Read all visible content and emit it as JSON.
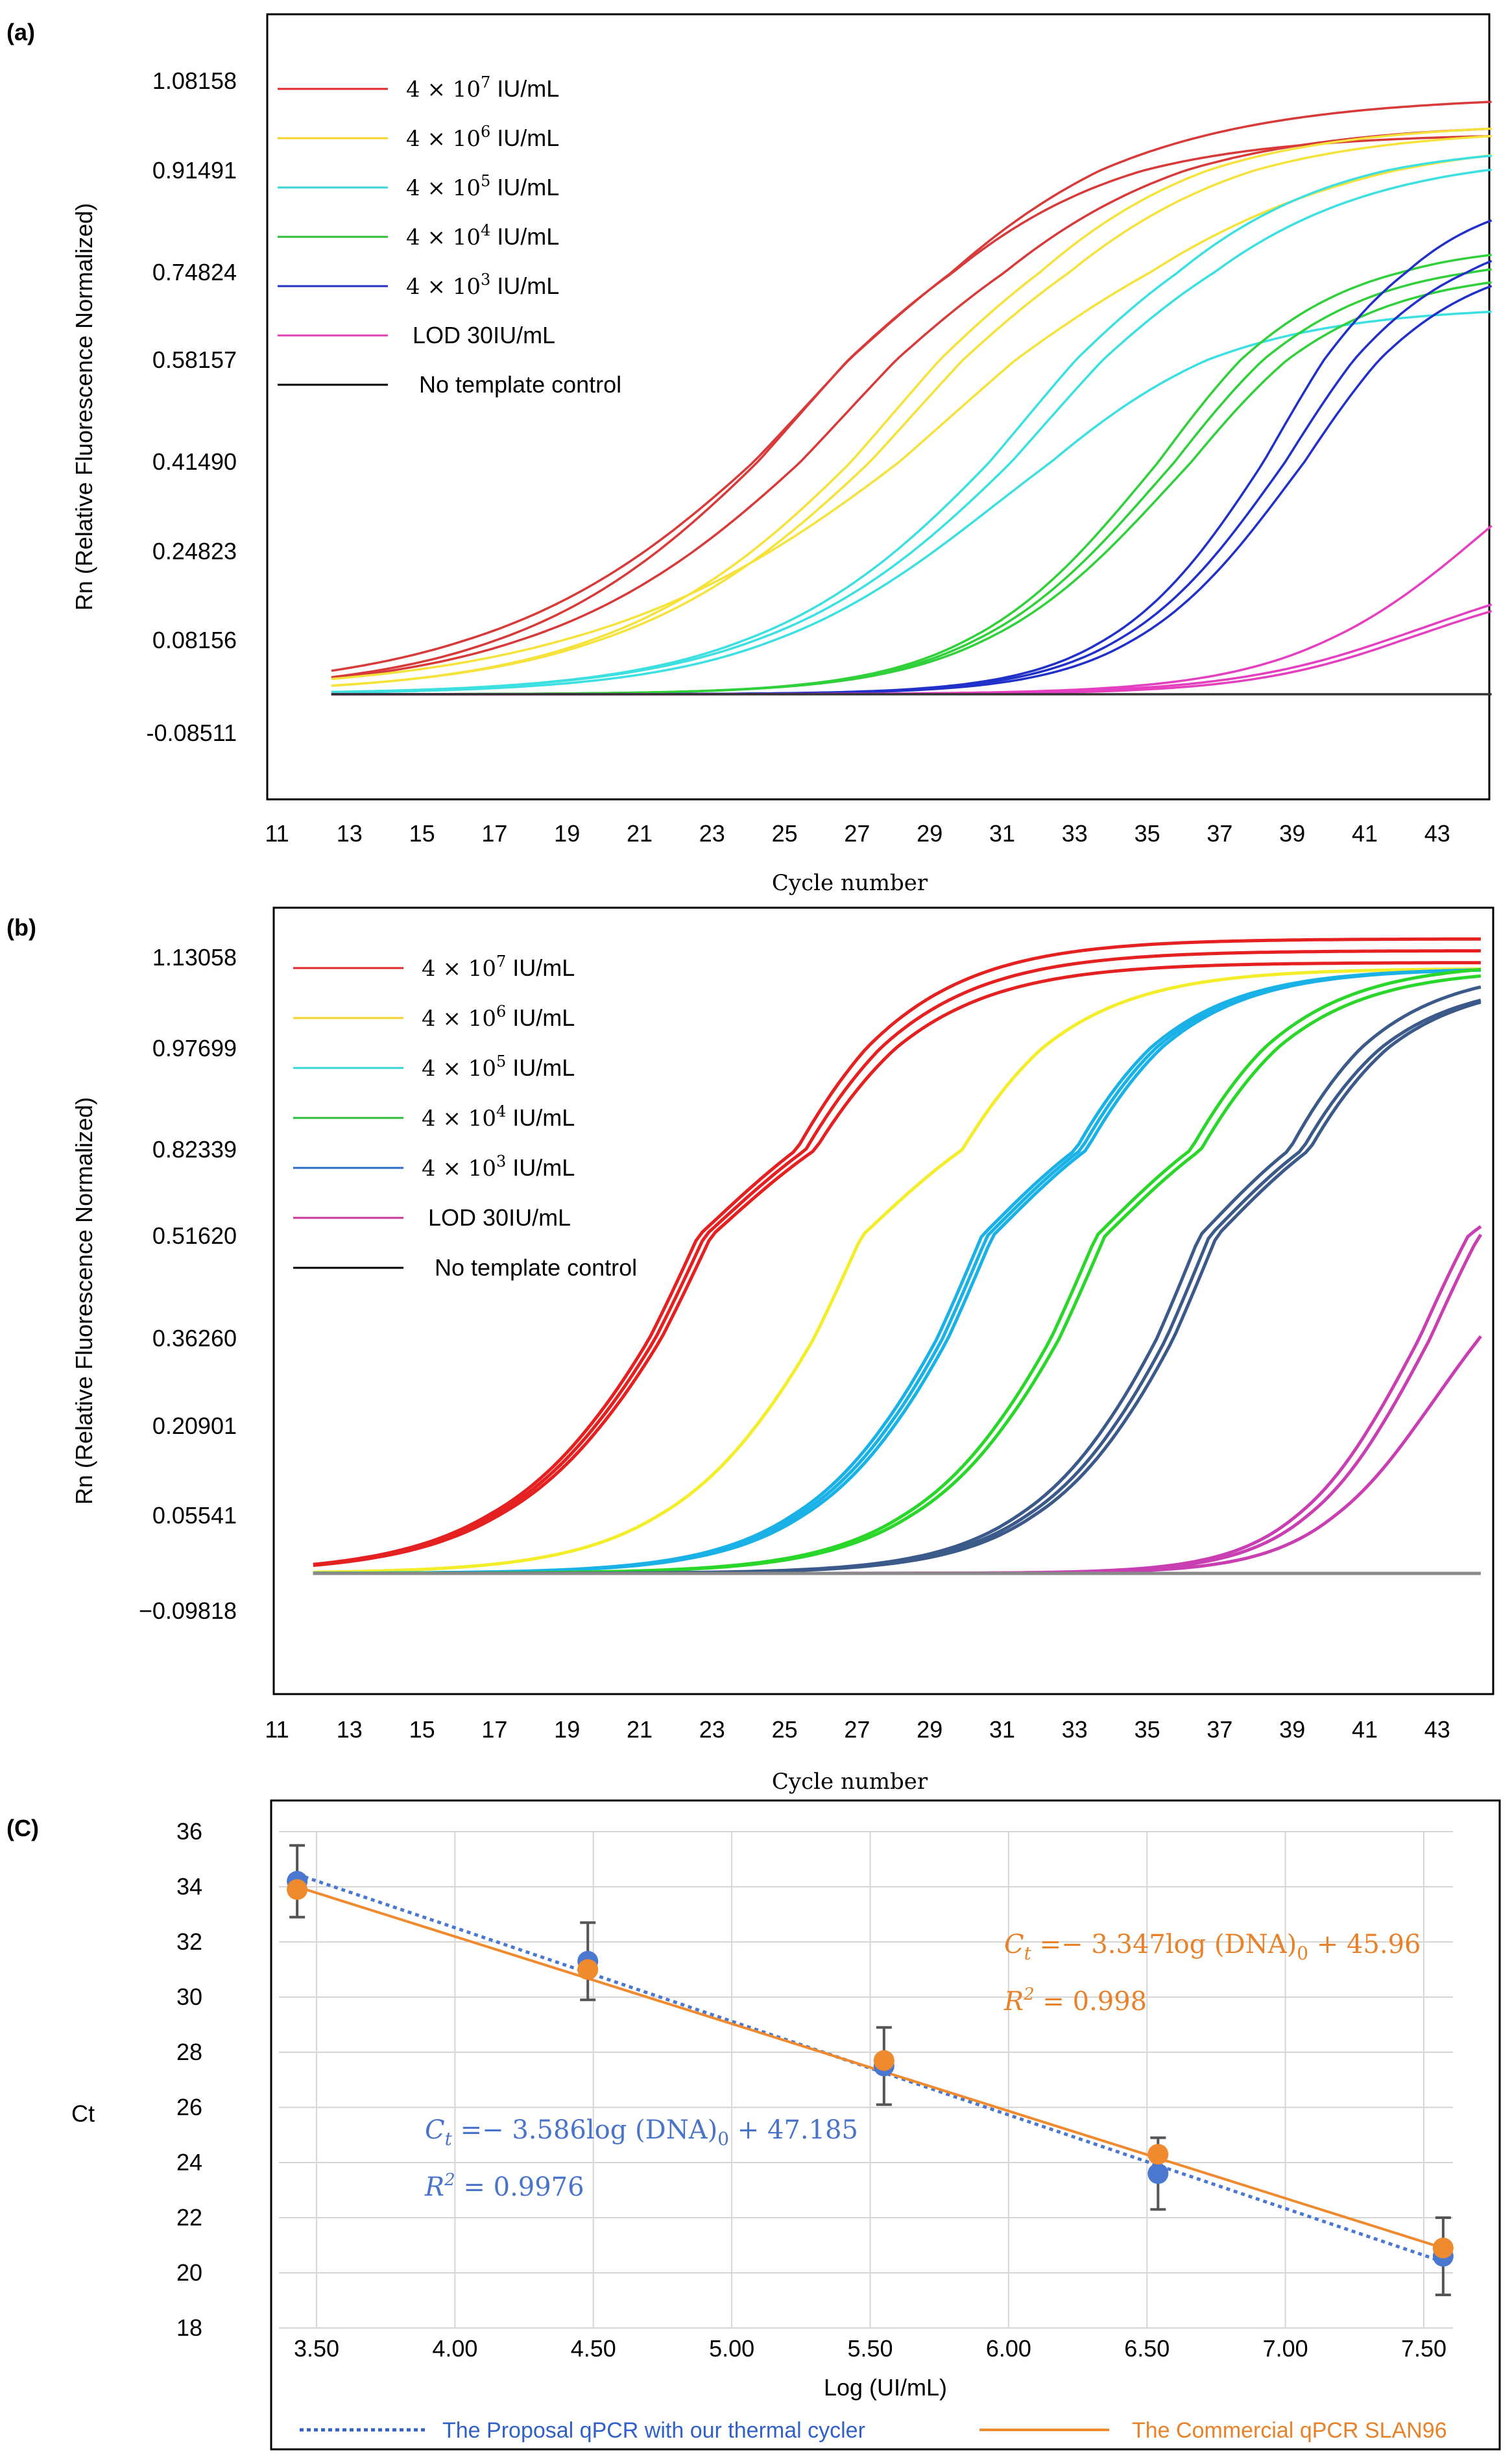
{
  "chart_data": [
    {
      "id": "a",
      "type": "line",
      "panel_label": "(a)",
      "xlabel": "Cycle  number",
      "ylabel": "Rn (Relative Fluorescence Normalized)",
      "x_ticks": [
        "11",
        "13",
        "15",
        "17",
        "19",
        "21",
        "23",
        "25",
        "27",
        "29",
        "31",
        "33",
        "35",
        "37",
        "39",
        "41",
        "43"
      ],
      "y_ticks": [
        "1.08158",
        "0.91491",
        "0.74824",
        "0.58157",
        "0.41490",
        "0.24823",
        "0.08156",
        "-0.08511"
      ],
      "y_tick_values": [
        1.08158,
        0.91491,
        0.74824,
        0.58157,
        0.4149,
        0.24823,
        0.08156,
        -0.08511
      ],
      "xlim": [
        11,
        44.5
      ],
      "ylim": [
        -0.16,
        1.2
      ],
      "legend": [
        {
          "base": "4 × 10",
          "exp": "7",
          "unit": " IU/mL",
          "color": "#e02828"
        },
        {
          "base": "4 × 10",
          "exp": "6",
          "unit": "  IU/mL",
          "color": "#f3d22a"
        },
        {
          "base": "4 × 10",
          "exp": "5",
          "unit": "  IU/mL",
          "color": "#35d6d6"
        },
        {
          "base": "4 × 10",
          "exp": "4",
          "unit": "  IU/mL",
          "color": "#2dbb3a"
        },
        {
          "base": "4 × 10",
          "exp": "3",
          "unit": "   IU/mL",
          "color": "#2030c8"
        },
        {
          "base": "LOD  30IU/mL",
          "exp": "",
          "unit": "",
          "color": "#e040b0"
        },
        {
          "base": "No template control",
          "exp": "",
          "unit": "",
          "color": "#000000"
        }
      ],
      "series": [
        {
          "name": "4e7",
          "color": "#d83a3a",
          "curves": [
            {
              "mid": 25.3,
              "top": 1.0,
              "k": 0.27
            },
            {
              "mid": 25.8,
              "top": 1.07,
              "k": 0.24
            },
            {
              "mid": 26.7,
              "top": 1.02,
              "k": 0.25
            }
          ]
        },
        {
          "name": "4e6",
          "color": "#f5e23a",
          "curves": [
            {
              "mid": 28.0,
              "top": 1.02,
              "k": 0.27
            },
            {
              "mid": 28.5,
              "top": 1.01,
              "k": 0.26
            },
            {
              "mid": 29.5,
              "top": 1.0,
              "k": 0.21
            }
          ]
        },
        {
          "name": "4e5",
          "color": "#3ce0e0",
          "curves": [
            {
              "mid": 31.5,
              "top": 0.98,
              "k": 0.29
            },
            {
              "mid": 32.0,
              "top": 0.96,
              "k": 0.28
            },
            {
              "mid": 30.8,
              "top": 0.7,
              "k": 0.3
            }
          ]
        },
        {
          "name": "4e4",
          "color": "#30d03a",
          "curves": [
            {
              "mid": 35.0,
              "top": 0.81,
              "k": 0.4
            },
            {
              "mid": 35.3,
              "top": 0.79,
              "k": 0.39
            },
            {
              "mid": 35.6,
              "top": 0.77,
              "k": 0.38
            }
          ]
        },
        {
          "name": "4e3",
          "color": "#2030c8",
          "curves": [
            {
              "mid": 38.4,
              "top": 0.9,
              "k": 0.46
            },
            {
              "mid": 38.7,
              "top": 0.84,
              "k": 0.45
            },
            {
              "mid": 39.0,
              "top": 0.8,
              "k": 0.45
            }
          ]
        },
        {
          "name": "LOD",
          "color": "#e53fc0",
          "curves": [
            {
              "mid": 44.3,
              "top": 0.6,
              "k": 0.38
            },
            {
              "mid": 42.8,
              "top": 0.25,
              "k": 0.38
            },
            {
              "mid": 42.6,
              "top": 0.22,
              "k": 0.42
            }
          ]
        },
        {
          "name": "NTC",
          "color": "#333333",
          "curves": [
            {
              "mid": 80,
              "top": 0.0,
              "k": 0.3
            }
          ]
        }
      ]
    },
    {
      "id": "b",
      "type": "line",
      "panel_label": "(b)",
      "xlabel": "Cycle  number",
      "ylabel": "Rn (Relative Fluorescence Normalized)",
      "x_ticks": [
        "11",
        "13",
        "15",
        "17",
        "19",
        "21",
        "23",
        "25",
        "27",
        "29",
        "31",
        "33",
        "35",
        "37",
        "39",
        "41",
        "43"
      ],
      "y_ticks": [
        "1.13058",
        "0.97699",
        "0.82339",
        "0.51620",
        "0.36260",
        "0.20901",
        "0.05541",
        "−0.09818"
      ],
      "y_tick_values": [
        1.13058,
        0.97699,
        0.82339,
        0.5162,
        0.3626,
        0.20901,
        0.05541,
        -0.09818
      ],
      "xlim": [
        11,
        44.5
      ],
      "ylim": [
        -0.16,
        1.2
      ],
      "legend": [
        {
          "base": "4 × 10",
          "exp": "7",
          "unit": " IU/mL",
          "color": "#e02828"
        },
        {
          "base": "4 × 10",
          "exp": "6",
          "unit": "  IU/mL",
          "color": "#f3d22a"
        },
        {
          "base": "4 × 10",
          "exp": "5",
          "unit": "  IU/mL",
          "color": "#35d6d6"
        },
        {
          "base": "4 × 10",
          "exp": "4",
          "unit": "  IU/mL",
          "color": "#2dbb3a"
        },
        {
          "base": "4 × 10",
          "exp": "3",
          "unit": "  IU/mL",
          "color": "#2b6ac8"
        },
        {
          "base": "LOD  30IU/mL",
          "exp": "",
          "unit": "",
          "color": "#c83a9a"
        },
        {
          "base": "No template control",
          "exp": "",
          "unit": "",
          "color": "#000000"
        }
      ],
      "series": [
        {
          "name": "4e7",
          "color": "#e52020",
          "curves": [
            {
              "mid": 23.0,
              "top": 1.2,
              "k": 0.4
            },
            {
              "mid": 23.1,
              "top": 1.18,
              "k": 0.4
            },
            {
              "mid": 23.2,
              "top": 1.16,
              "k": 0.4
            }
          ]
        },
        {
          "name": "4e6",
          "color": "#f4ee2a",
          "curves": [
            {
              "mid": 27.3,
              "top": 1.15,
              "k": 0.42
            }
          ]
        },
        {
          "name": "4e5",
          "color": "#1ab2e6",
          "curves": [
            {
              "mid": 30.6,
              "top": 1.15,
              "k": 0.45
            },
            {
              "mid": 30.75,
              "top": 1.15,
              "k": 0.45
            },
            {
              "mid": 30.9,
              "top": 1.15,
              "k": 0.45
            }
          ]
        },
        {
          "name": "4e4",
          "color": "#2ad62a",
          "curves": [
            {
              "mid": 33.8,
              "top": 1.16,
              "k": 0.44
            },
            {
              "mid": 34.0,
              "top": 1.15,
              "k": 0.44
            }
          ]
        },
        {
          "name": "4e3",
          "color": "#3b5a8a",
          "curves": [
            {
              "mid": 36.6,
              "top": 1.15,
              "k": 0.47
            },
            {
              "mid": 36.8,
              "top": 1.13,
              "k": 0.47
            },
            {
              "mid": 37.0,
              "top": 1.13,
              "k": 0.47
            }
          ]
        },
        {
          "name": "LOD",
          "color": "#c93fb2",
          "curves": [
            {
              "mid": 42.5,
              "top": 0.8,
              "k": 0.6
            },
            {
              "mid": 42.8,
              "top": 0.8,
              "k": 0.6
            },
            {
              "mid": 43.0,
              "top": 0.6,
              "k": 0.6
            }
          ]
        },
        {
          "name": "NTC",
          "color": "#8a8a8a",
          "curves": [
            {
              "mid": 80,
              "top": 0.0,
              "k": 0.3
            }
          ]
        }
      ]
    },
    {
      "id": "c",
      "type": "scatter",
      "panel_label": "(C)",
      "xlabel": "Log (UI/mL)",
      "ylabel": "Ct",
      "xlim": [
        3.35,
        7.75
      ],
      "ylim": [
        18,
        36
      ],
      "x_ticks": [
        "3.50",
        "4.00",
        "4.50",
        "5.00",
        "5.50",
        "6.00",
        "6.50",
        "7.00",
        "7.50"
      ],
      "x_tick_values": [
        3.5,
        4.0,
        4.5,
        5.0,
        5.5,
        6.0,
        6.5,
        7.0,
        7.5
      ],
      "y_ticks": [
        "36",
        "34",
        "32",
        "30",
        "28",
        "26",
        "24",
        "22",
        "20",
        "18"
      ],
      "y_tick_values": [
        36,
        34,
        32,
        30,
        28,
        26,
        24,
        22,
        20,
        18
      ],
      "blue_points": [
        {
          "x": 3.43,
          "y": 34.2,
          "err": 1.3
        },
        {
          "x": 4.48,
          "y": 31.3,
          "err": 1.4
        },
        {
          "x": 5.55,
          "y": 27.5,
          "err": 1.4
        },
        {
          "x": 6.54,
          "y": 23.6,
          "err": 1.3
        },
        {
          "x": 7.57,
          "y": 20.6,
          "err": 1.4
        }
      ],
      "orange_points": [
        {
          "x": 3.43,
          "y": 33.9
        },
        {
          "x": 4.48,
          "y": 31.0
        },
        {
          "x": 5.55,
          "y": 27.7
        },
        {
          "x": 6.54,
          "y": 24.3
        },
        {
          "x": 7.57,
          "y": 20.9
        }
      ],
      "blue_fit": {
        "x0": 3.43,
        "y0": 34.45,
        "x1": 7.57,
        "y1": 20.4
      },
      "orange_fit": {
        "x0": 3.43,
        "y0": 34.0,
        "x1": 7.57,
        "y1": 20.9
      },
      "orange_eq": {
        "lhs": "C",
        "sub": "t",
        "rhs": " =− 3.347log (DNA)",
        "sub0": "0",
        "tail": " + 45.96"
      },
      "orange_r2": {
        "base": "R",
        "exp": "2",
        "rest": " = 0.998"
      },
      "blue_eq": {
        "lhs": "C",
        "sub": "t",
        "rhs": " =− 3.586log (DNA)",
        "sub0": "0",
        "tail": " + 47.185"
      },
      "blue_r2": {
        "base": "R",
        "exp": "2",
        "rest": " = 0.9976"
      },
      "legend_blue": "The Proposal  qPCR with our thermal cycler",
      "legend_orange": "The Commercial qPCR SLAN96",
      "colors": {
        "blue": "#4a78d0",
        "orange": "#ef8a2e",
        "err": "#555555"
      }
    }
  ]
}
